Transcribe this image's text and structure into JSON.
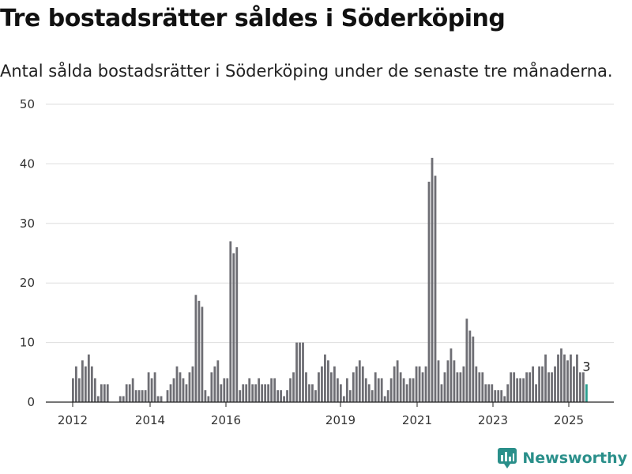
{
  "title": "Tre bostadsrätter såldes i Söderköping",
  "subtitle": "Antal sålda bostadsrätter i Söderköping under de senaste tre månaderna.",
  "brand": "Newsworthy",
  "colors": {
    "bar": "#6e6e74",
    "highlight": "#2a9d8f",
    "grid": "#dedede",
    "brand": "#2a8f8a"
  },
  "chart_data": {
    "type": "bar",
    "ylim": [
      0,
      50
    ],
    "yticks": [
      0,
      10,
      20,
      30,
      40,
      50
    ],
    "xticks": [
      "2012",
      "2014",
      "2016",
      "2019",
      "2021",
      "2023",
      "2025"
    ],
    "highlight_label": "3",
    "values": [
      4,
      6,
      4,
      7,
      6,
      8,
      6,
      4,
      1,
      3,
      3,
      3,
      0,
      0,
      0,
      1,
      1,
      3,
      3,
      4,
      2,
      2,
      2,
      2,
      5,
      4,
      5,
      1,
      1,
      0,
      2,
      3,
      4,
      6,
      5,
      4,
      3,
      5,
      6,
      18,
      17,
      16,
      2,
      1,
      5,
      6,
      7,
      3,
      4,
      4,
      27,
      25,
      26,
      2,
      3,
      3,
      4,
      3,
      3,
      4,
      3,
      3,
      3,
      4,
      4,
      2,
      2,
      1,
      2,
      4,
      5,
      10,
      10,
      10,
      5,
      3,
      3,
      2,
      5,
      6,
      8,
      7,
      5,
      6,
      4,
      3,
      1,
      4,
      2,
      5,
      6,
      7,
      6,
      4,
      3,
      2,
      5,
      4,
      4,
      1,
      2,
      4,
      6,
      7,
      5,
      4,
      3,
      4,
      4,
      6,
      6,
      5,
      6,
      37,
      41,
      38,
      7,
      3,
      5,
      7,
      9,
      7,
      5,
      5,
      6,
      14,
      12,
      11,
      6,
      5,
      5,
      3,
      3,
      3,
      2,
      2,
      2,
      1,
      3,
      5,
      5,
      4,
      4,
      4,
      5,
      5,
      6,
      3,
      6,
      6,
      8,
      5,
      5,
      6,
      8,
      9,
      8,
      7,
      8,
      6,
      8,
      5,
      5,
      3
    ]
  }
}
